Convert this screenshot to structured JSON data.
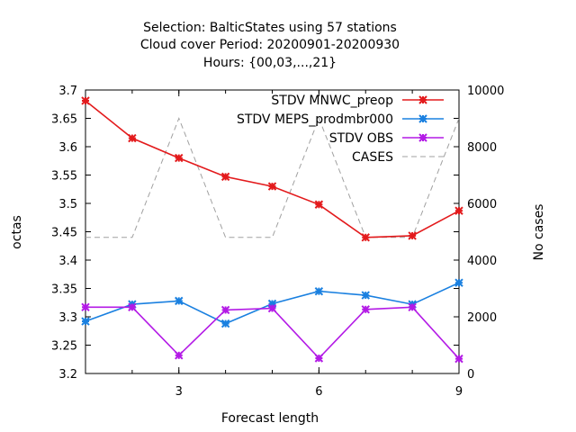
{
  "chart_data": {
    "type": "line",
    "title_lines": [
      "Selection: BalticStates using    57 stations",
      "Cloud cover   Period: 20200901-20200930",
      "Hours: {00,03,...,21}"
    ],
    "xlabel": "Forecast length",
    "ylabel": "octas",
    "y2label": "No cases",
    "xlim": [
      1,
      9
    ],
    "ylim": [
      3.2,
      3.7
    ],
    "y2lim": [
      0,
      10000
    ],
    "x_ticks": [
      3,
      6,
      9
    ],
    "y_ticks": [
      "3.2",
      "3.25",
      "3.3",
      "3.35",
      "3.4",
      "3.45",
      "3.5",
      "3.55",
      "3.6",
      "3.65",
      "3.7"
    ],
    "y2_ticks": [
      "0",
      "2000",
      "4000",
      "6000",
      "8000",
      "10000"
    ],
    "legend_position": "top-right",
    "grid": false,
    "x": [
      1,
      2,
      3,
      4,
      5,
      6,
      7,
      8,
      9
    ],
    "series": [
      {
        "name": "STDV MNWC_preop",
        "color": "#e31a1c",
        "axis": "y",
        "style": "line-points",
        "values": [
          3.681,
          3.615,
          3.58,
          3.547,
          3.53,
          3.498,
          3.44,
          3.443,
          3.487
        ]
      },
      {
        "name": "STDV MEPS_prodmbr000",
        "color": "#1a80e0",
        "axis": "y",
        "style": "line-points",
        "values": [
          3.292,
          3.322,
          3.328,
          3.288,
          3.323,
          3.345,
          3.338,
          3.322,
          3.36
        ]
      },
      {
        "name": "STDV OBS",
        "color": "#b31ae6",
        "axis": "y",
        "style": "line-points",
        "values": [
          3.317,
          3.317,
          3.232,
          3.312,
          3.315,
          3.227,
          3.313,
          3.317,
          3.226
        ]
      },
      {
        "name": "CASES",
        "color": "#a0a0a0",
        "axis": "y2",
        "style": "dashed",
        "values": [
          4800,
          4800,
          9000,
          4800,
          4800,
          9000,
          4800,
          4800,
          9000
        ]
      }
    ]
  }
}
